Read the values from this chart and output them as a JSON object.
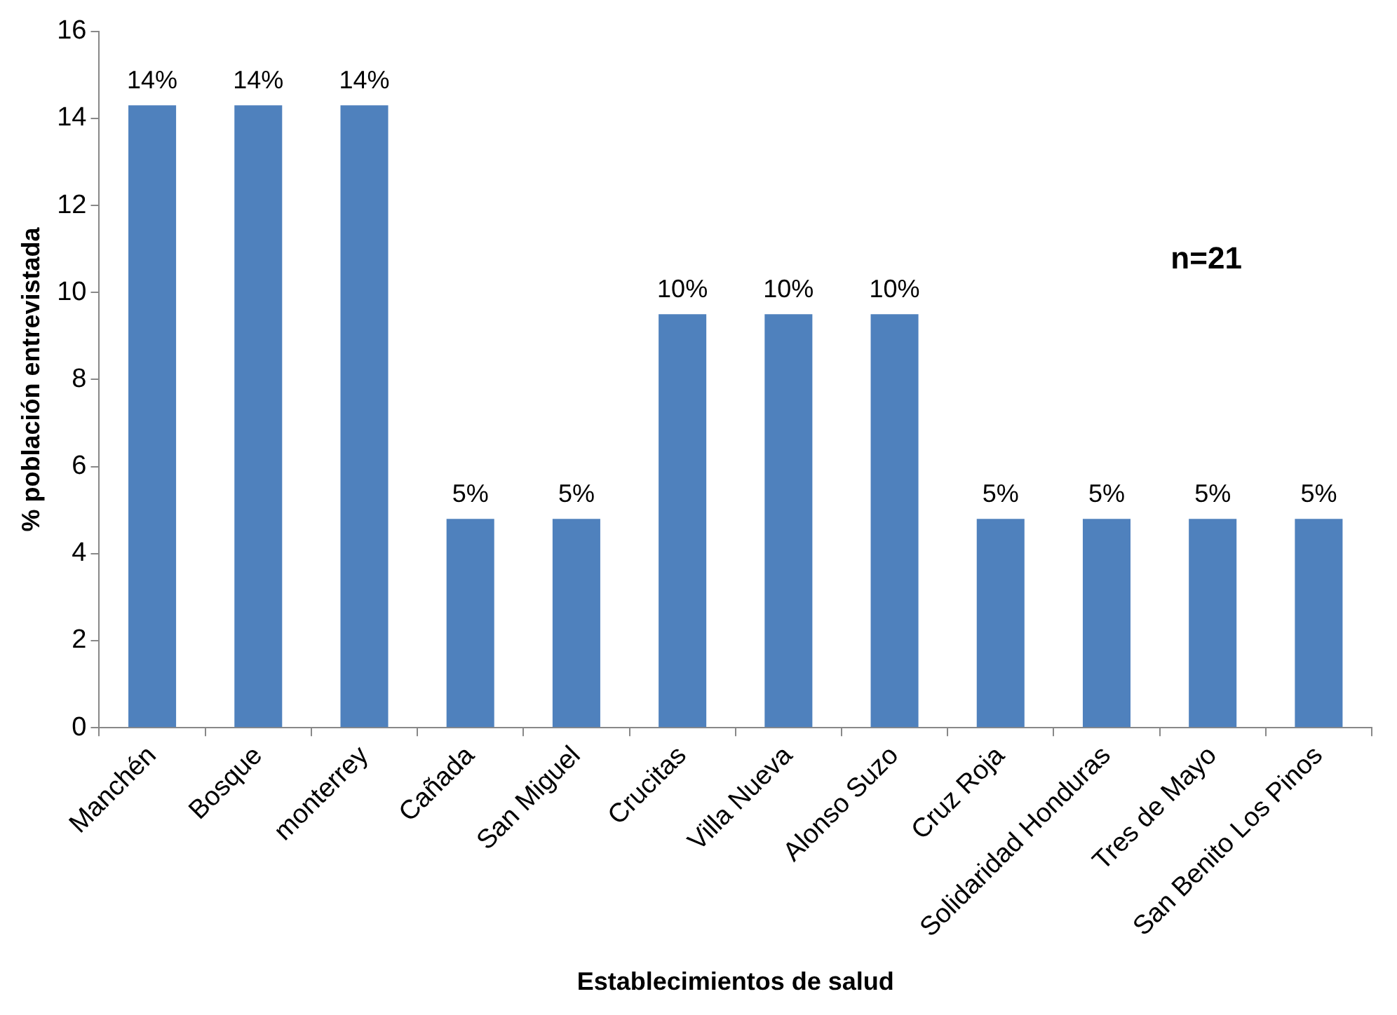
{
  "chart_data": {
    "type": "bar",
    "xlabel": "Establecimientos de salud",
    "ylabel": "% población entrevistada",
    "categories": [
      "Manchén",
      "Bosque",
      "monterrey",
      "Cañada",
      "San Miguel",
      "Crucitas",
      "Villa Nueva",
      "Alonso Suzo",
      "Cruz Roja",
      "Solidaridad Honduras",
      "Tres de Mayo",
      "San Benito Los Pinos"
    ],
    "values": [
      14.3,
      14.3,
      14.3,
      4.8,
      4.8,
      9.5,
      9.5,
      9.5,
      4.8,
      4.8,
      4.8,
      4.8
    ],
    "value_labels": [
      "14%",
      "14%",
      "14%",
      "5%",
      "5%",
      "10%",
      "10%",
      "10%",
      "5%",
      "5%",
      "5%",
      "5%"
    ],
    "color": "#4f81bd",
    "ylim": [
      0,
      16
    ],
    "yticks": [
      0,
      2,
      4,
      6,
      8,
      10,
      12,
      14,
      16
    ],
    "grid": false,
    "legend": false,
    "annotations": [
      "n=21"
    ]
  }
}
